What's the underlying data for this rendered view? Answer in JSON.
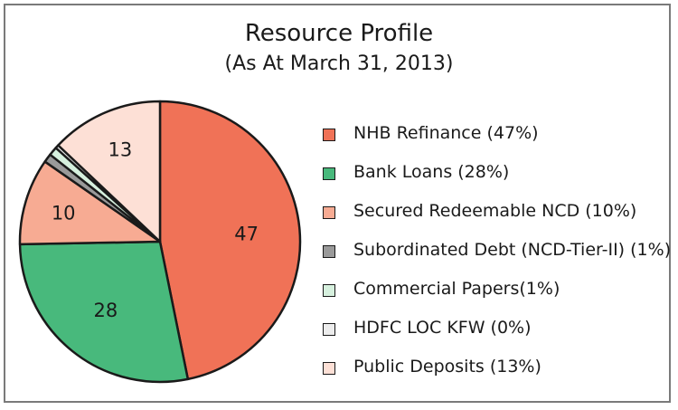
{
  "chart_data": {
    "type": "pie",
    "title": "Resource Profile",
    "subtitle": "(As At March 31, 2013)",
    "slices": [
      {
        "name": "NHB Refinance",
        "value": 47,
        "label": "47",
        "legend": "NHB Refinance (47%)",
        "color": "#f07257"
      },
      {
        "name": "Bank Loans",
        "value": 28,
        "label": "28",
        "legend": "Bank Loans (28%)",
        "color": "#48b97c"
      },
      {
        "name": "Secured Redeemable NCD",
        "value": 10,
        "label": "10",
        "legend": "Secured Redeemable NCD (10%)",
        "color": "#f7ab93"
      },
      {
        "name": "Subordinated Debt (NCD-Tier-II)",
        "value": 1,
        "label": "",
        "legend": "Subordinated Debt (NCD-Tier-II) (1%)",
        "color": "#9a9a9a"
      },
      {
        "name": "Commercial Papers",
        "value": 1,
        "label": "",
        "legend": "Commercial Papers(1%)",
        "color": "#d6f0de"
      },
      {
        "name": "HDFC LOC KFW",
        "value": 0.4,
        "label": "",
        "legend": "HDFC LOC KFW (0%)",
        "color": "#ececec"
      },
      {
        "name": "Public Deposits",
        "value": 13,
        "label": "13",
        "legend": "Public Deposits (13%)",
        "color": "#fde0d6"
      }
    ],
    "legend_position": "right"
  }
}
